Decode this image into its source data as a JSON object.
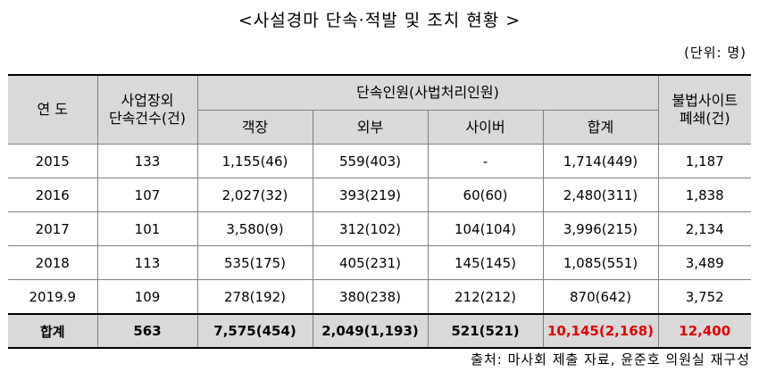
{
  "title": "<사설경마 단속·적발 및 조치 현황 >",
  "unit": "(단위: 명)",
  "headers": {
    "year": "연 도",
    "cases": "사업장외\n단속건수(건)",
    "enforced": "단속인원(사법처리인원)",
    "sub": [
      "객장",
      "외부",
      "사이버",
      "합계"
    ],
    "sites": "불법사이트\n폐쇄(건)"
  },
  "rows": [
    {
      "year": "2015",
      "cases": "133",
      "venue": "1,155(46)",
      "outside": "559(403)",
      "cyber": "-",
      "total": "1,714(449)",
      "sites": "1,187"
    },
    {
      "year": "2016",
      "cases": "107",
      "venue": "2,027(32)",
      "outside": "393(219)",
      "cyber": "60(60)",
      "total": "2,480(311)",
      "sites": "1,838"
    },
    {
      "year": "2017",
      "cases": "101",
      "venue": "3,580(9)",
      "outside": "312(102)",
      "cyber": "104(104)",
      "total": "3,996(215)",
      "sites": "2,134"
    },
    {
      "year": "2018",
      "cases": "113",
      "venue": "535(175)",
      "outside": "405(231)",
      "cyber": "145(145)",
      "total": "1,085(551)",
      "sites": "3,489"
    },
    {
      "year": "2019.9",
      "cases": "109",
      "venue": "278(192)",
      "outside": "380(238)",
      "cyber": "212(212)",
      "total": "870(642)",
      "sites": "3,752"
    }
  ],
  "total_row": {
    "year": "합계",
    "cases": "563",
    "venue": "7,575(454)",
    "outside": "2,049(1,193)",
    "cyber": "521(521)",
    "total": "10,145(2,168)",
    "sites": "12,400"
  },
  "highlight_color": "#e00000",
  "source": "출처: 마사회 제출 자료, 윤준호 의원실 재구성"
}
